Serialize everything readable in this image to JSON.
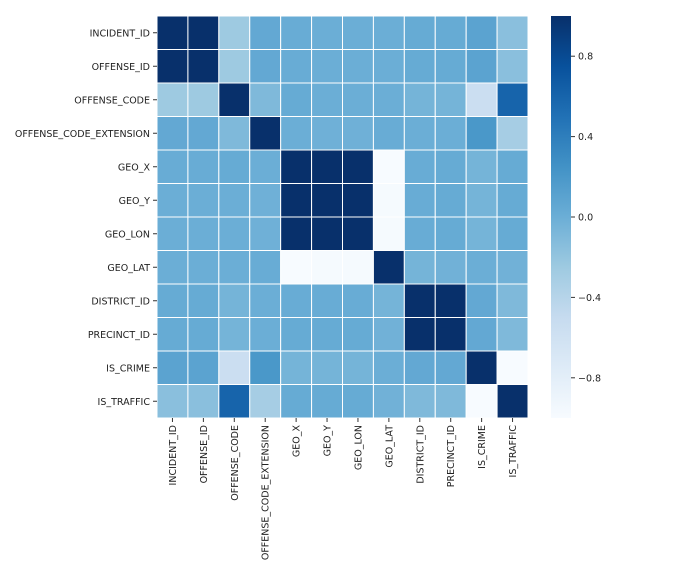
{
  "chart_data": {
    "type": "heatmap",
    "title": "",
    "xlabel": "",
    "ylabel": "",
    "labels": [
      "INCIDENT_ID",
      "OFFENSE_ID",
      "OFFENSE_CODE",
      "OFFENSE_CODE_EXTENSION",
      "GEO_X",
      "GEO_Y",
      "GEO_LON",
      "GEO_LAT",
      "DISTRICT_ID",
      "PRECINCT_ID",
      "IS_CRIME",
      "IS_TRAFFIC"
    ],
    "values": [
      [
        1,
        1,
        -0.25,
        0.05,
        0.02,
        0,
        0,
        0,
        0.03,
        0.03,
        0.1,
        -0.15
      ],
      [
        1,
        1,
        -0.25,
        0.05,
        0.02,
        0,
        0,
        0,
        0.03,
        0.03,
        0.1,
        -0.15
      ],
      [
        -0.25,
        -0.25,
        1,
        -0.1,
        0.03,
        0,
        0,
        0,
        -0.05,
        -0.05,
        -0.55,
        0.6
      ],
      [
        0.05,
        0.05,
        -0.1,
        1,
        0,
        -0.02,
        -0.02,
        0.02,
        0,
        0,
        0.2,
        -0.3
      ],
      [
        0.02,
        0.02,
        0.03,
        0,
        1,
        1,
        1,
        -1,
        0.02,
        0.03,
        -0.05,
        0.03
      ],
      [
        0,
        0,
        0,
        -0.02,
        1,
        1,
        1,
        -0.98,
        0.02,
        0.03,
        -0.05,
        0.03
      ],
      [
        0,
        0,
        0,
        -0.02,
        1,
        1,
        1,
        -0.98,
        0.02,
        0.03,
        -0.05,
        0.03
      ],
      [
        0,
        0,
        0,
        0.02,
        -1,
        -0.98,
        -0.98,
        1,
        -0.05,
        -0.03,
        0,
        -0.03
      ],
      [
        0.03,
        0.03,
        -0.05,
        0,
        0.02,
        0.02,
        0.02,
        -0.05,
        1,
        1,
        0.05,
        -0.1
      ],
      [
        0.03,
        0.03,
        -0.05,
        0,
        0.03,
        0.03,
        0.03,
        -0.03,
        1,
        1,
        0.05,
        -0.1
      ],
      [
        0.1,
        0.1,
        -0.55,
        0.2,
        -0.05,
        -0.05,
        -0.05,
        0,
        0.05,
        0.05,
        1,
        -1
      ],
      [
        -0.15,
        -0.15,
        0.6,
        -0.3,
        0.03,
        0.03,
        0.03,
        -0.03,
        -0.1,
        -0.1,
        -1,
        1
      ]
    ],
    "colormap": "Blues",
    "vmin": -1,
    "vmax": 1,
    "colorbar_ticks": [
      0.8,
      0.4,
      0.0,
      -0.4,
      -0.8
    ],
    "colorbar_tick_labels": [
      "0.8",
      "0.4",
      "0.0",
      "−0.4",
      "−0.8"
    ],
    "colorbar_placement": "right",
    "cell_border_color": "#ffffff"
  }
}
